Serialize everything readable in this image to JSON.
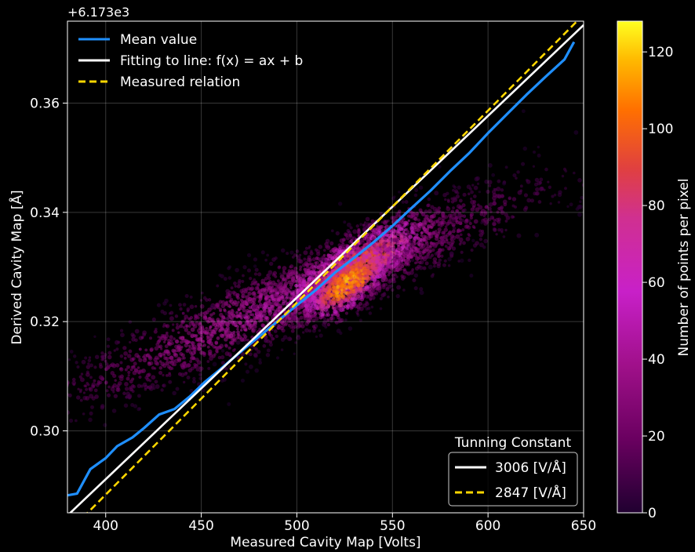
{
  "chart_data": {
    "type": "heatmap",
    "offset_label": "+6.173e3",
    "xlabel": "Measured Cavity Map [Volts]",
    "ylabel": "Derived Cavity Map [Å]",
    "xlim": [
      380,
      650
    ],
    "ylim": [
      0.285,
      0.375
    ],
    "xticks": [
      400,
      450,
      500,
      550,
      600,
      650
    ],
    "yticks": [
      0.3,
      0.32,
      0.34,
      0.36
    ],
    "xtick_labels": [
      "400",
      "450",
      "500",
      "550",
      "600",
      "650"
    ],
    "ytick_labels": [
      "0.30",
      "0.32",
      "0.34",
      "0.36"
    ],
    "grid": true,
    "legend_top": {
      "placement": "upper-left",
      "entries": [
        {
          "label": "Mean value",
          "color": "#1f8fff",
          "style": "solid"
        },
        {
          "label": "Fitting to line: f(x) = ax + b",
          "color": "#ffffff",
          "style": "solid"
        },
        {
          "label": "Measured relation",
          "color": "#ffd700",
          "style": "dashed"
        }
      ]
    },
    "legend_bottom": {
      "placement": "lower-right",
      "title": "Tunning Constant",
      "entries": [
        {
          "label": "3006 [V/Å]",
          "color": "#ffffff",
          "style": "solid"
        },
        {
          "label": "2847 [V/Å]",
          "color": "#ffd700",
          "style": "dashed"
        }
      ]
    },
    "colorbar": {
      "label": "Number of points per pixel",
      "min": 0,
      "max": 128,
      "ticks": [
        0,
        20,
        40,
        60,
        80,
        100,
        120
      ],
      "tick_labels": [
        "0",
        "20",
        "40",
        "60",
        "80",
        "100",
        "120"
      ],
      "colormap": "plasma-like"
    },
    "series": [
      {
        "name": "Mean value",
        "x": [
          380,
          385,
          392,
          400,
          406,
          414,
          420,
          428,
          436,
          444,
          452,
          460,
          470,
          480,
          490,
          500,
          510,
          520,
          530,
          540,
          550,
          560,
          570,
          580,
          590,
          600,
          610,
          620,
          630,
          640,
          645
        ],
        "y": [
          0.2882,
          0.2885,
          0.293,
          0.295,
          0.2972,
          0.2988,
          0.3005,
          0.303,
          0.304,
          0.3063,
          0.309,
          0.3113,
          0.3143,
          0.3172,
          0.3201,
          0.323,
          0.3258,
          0.329,
          0.3317,
          0.3345,
          0.3375,
          0.3408,
          0.344,
          0.3475,
          0.3508,
          0.3545,
          0.358,
          0.3615,
          0.3648,
          0.368,
          0.3712
        ]
      },
      {
        "name": "Fitting to line: f(x) = ax + b",
        "x": [
          380,
          650
        ],
        "y": [
          0.2845,
          0.3743
        ]
      },
      {
        "name": "Measured relation",
        "x": [
          380,
          650
        ],
        "y": [
          0.2813,
          0.3762
        ]
      }
    ],
    "density_clusters": [
      {
        "cx": 500,
        "cy": 0.325,
        "sx": 62,
        "sy": 0.01,
        "rho": 0.93,
        "n": 2600,
        "weight": 0.35
      },
      {
        "cx": 530,
        "cy": 0.33,
        "sx": 22,
        "sy": 0.005,
        "rho": 0.8,
        "n": 1400,
        "weight": 0.8
      },
      {
        "cx": 527,
        "cy": 0.327,
        "sx": 12,
        "sy": 0.0035,
        "rho": 0.7,
        "n": 700,
        "weight": 1.0
      }
    ]
  }
}
